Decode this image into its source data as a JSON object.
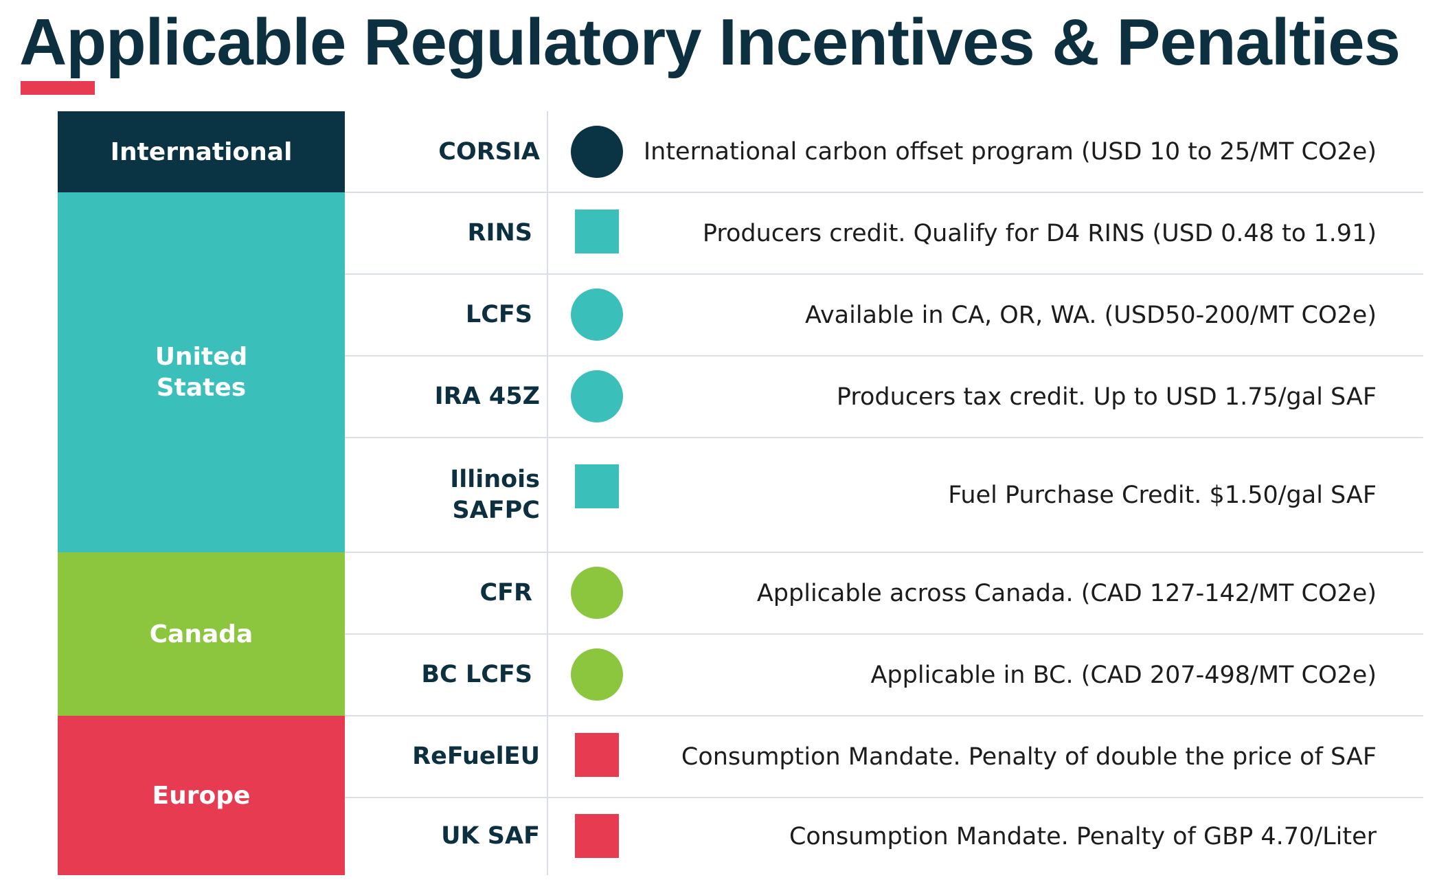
{
  "title": "Applicable Regulatory Incentives & Penalties",
  "colors": {
    "title": "#0d3040",
    "accent_underline": "#e63b50",
    "international": "#0a3444",
    "united_states": "#3bbfbb",
    "canada": "#8cc63f",
    "europe": "#e63b50",
    "divider": "#d9dfe4"
  },
  "regions": [
    {
      "label": "International",
      "color": "#0a3444"
    },
    {
      "label": "United\nStates",
      "color": "#3bbfbb"
    },
    {
      "label": "Canada",
      "color": "#8cc63f"
    },
    {
      "label": "Europe",
      "color": "#e63b50"
    }
  ],
  "programs": [
    {
      "name": "CORSIA",
      "marker": "circle",
      "color": "#0a3444",
      "description": "International carbon offset program (USD 10 to 25/MT CO2e)"
    },
    {
      "name": "RINS",
      "marker": "square",
      "color": "#3bbfbb",
      "description": "Producers credit. Qualify for D4 RINS (USD 0.48 to 1.91)"
    },
    {
      "name": "LCFS",
      "marker": "circle",
      "color": "#3bbfbb",
      "description": "Available in CA, OR, WA. (USD50-200/MT CO2e)"
    },
    {
      "name": "IRA 45Z",
      "marker": "circle",
      "color": "#3bbfbb",
      "description": "Producers tax credit. Up to USD 1.75/gal SAF"
    },
    {
      "name": "Illinois\nSAFPC",
      "marker": "square",
      "color": "#3bbfbb",
      "description": "Fuel Purchase Credit. $1.50/gal SAF"
    },
    {
      "name": "CFR",
      "marker": "circle",
      "color": "#8cc63f",
      "description": "Applicable across Canada. (CAD 127-142/MT CO2e)"
    },
    {
      "name": "BC LCFS",
      "marker": "circle",
      "color": "#8cc63f",
      "description": "Applicable in BC. (CAD 207-498/MT CO2e)"
    },
    {
      "name": "ReFuelEU",
      "marker": "square",
      "color": "#e63b50",
      "description": "Consumption Mandate. Penalty of double the price of SAF"
    },
    {
      "name": "UK SAF",
      "marker": "square",
      "color": "#e63b50",
      "description": "Consumption Mandate. Penalty of GBP 4.70/Liter"
    }
  ]
}
